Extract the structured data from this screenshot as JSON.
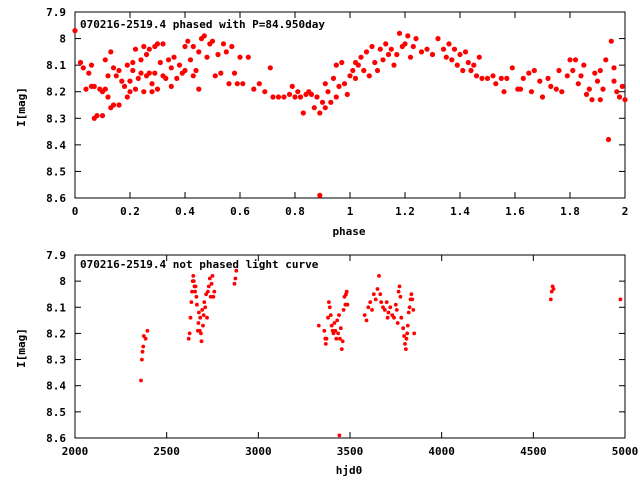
{
  "colors": {
    "points": "#ff0000",
    "frame": "#000000"
  },
  "chart_data": [
    {
      "type": "scatter",
      "title": "070216-2519.4 phased with P=84.950day",
      "xlabel": "phase",
      "ylabel": "I[mag]",
      "xlim": [
        0,
        2
      ],
      "ylim": [
        8.6,
        7.9
      ],
      "y_inverted": true,
      "grid": false,
      "xticks": [
        "0",
        "0.2",
        "0.4",
        "0.6",
        "0.8",
        "1",
        "1.2",
        "1.4",
        "1.6",
        "1.8",
        "2"
      ],
      "xtick_values": [
        0,
        0.2,
        0.4,
        0.6,
        0.8,
        1,
        1.2,
        1.4,
        1.6,
        1.8,
        2
      ],
      "yticks": [
        "7.9",
        "8",
        "8.1",
        "8.2",
        "8.3",
        "8.4",
        "8.5",
        "8.6"
      ],
      "ytick_values": [
        7.9,
        8,
        8.1,
        8.2,
        8.3,
        8.4,
        8.5,
        8.6
      ],
      "points": [
        [
          0.0,
          7.97
        ],
        [
          0.02,
          8.09
        ],
        [
          0.03,
          8.11
        ],
        [
          0.04,
          8.19
        ],
        [
          0.05,
          8.13
        ],
        [
          0.06,
          8.1
        ],
        [
          0.06,
          8.18
        ],
        [
          0.07,
          8.3
        ],
        [
          0.07,
          8.18
        ],
        [
          0.08,
          8.29
        ],
        [
          0.09,
          8.19
        ],
        [
          0.1,
          8.29
        ],
        [
          0.1,
          8.2
        ],
        [
          0.11,
          8.19
        ],
        [
          0.11,
          8.08
        ],
        [
          0.12,
          8.14
        ],
        [
          0.12,
          8.22
        ],
        [
          0.13,
          8.05
        ],
        [
          0.13,
          8.26
        ],
        [
          0.14,
          8.11
        ],
        [
          0.14,
          8.25
        ],
        [
          0.15,
          8.14
        ],
        [
          0.16,
          8.12
        ],
        [
          0.16,
          8.25
        ],
        [
          0.17,
          8.16
        ],
        [
          0.18,
          8.18
        ],
        [
          0.19,
          8.22
        ],
        [
          0.19,
          8.1
        ],
        [
          0.2,
          8.16
        ],
        [
          0.2,
          8.2
        ],
        [
          0.21,
          8.09
        ],
        [
          0.21,
          8.12
        ],
        [
          0.22,
          8.04
        ],
        [
          0.22,
          8.19
        ],
        [
          0.23,
          8.15
        ],
        [
          0.24,
          8.08
        ],
        [
          0.24,
          8.13
        ],
        [
          0.25,
          8.03
        ],
        [
          0.25,
          8.2
        ],
        [
          0.26,
          8.06
        ],
        [
          0.26,
          8.14
        ],
        [
          0.27,
          8.13
        ],
        [
          0.27,
          8.04
        ],
        [
          0.28,
          8.17
        ],
        [
          0.28,
          8.2
        ],
        [
          0.29,
          8.03
        ],
        [
          0.29,
          8.13
        ],
        [
          0.3,
          8.02
        ],
        [
          0.3,
          8.19
        ],
        [
          0.31,
          8.09
        ],
        [
          0.32,
          8.14
        ],
        [
          0.32,
          8.02
        ],
        [
          0.33,
          8.15
        ],
        [
          0.34,
          8.08
        ],
        [
          0.35,
          8.11
        ],
        [
          0.35,
          8.18
        ],
        [
          0.36,
          8.07
        ],
        [
          0.37,
          8.15
        ],
        [
          0.38,
          8.1
        ],
        [
          0.39,
          8.13
        ],
        [
          0.4,
          8.03
        ],
        [
          0.4,
          8.12
        ],
        [
          0.41,
          8.01
        ],
        [
          0.42,
          8.08
        ],
        [
          0.43,
          8.03
        ],
        [
          0.43,
          8.14
        ],
        [
          0.44,
          8.12
        ],
        [
          0.45,
          8.05
        ],
        [
          0.45,
          8.19
        ],
        [
          0.46,
          8.0
        ],
        [
          0.47,
          7.99
        ],
        [
          0.48,
          8.07
        ],
        [
          0.49,
          8.02
        ],
        [
          0.5,
          8.01
        ],
        [
          0.51,
          8.14
        ],
        [
          0.52,
          8.06
        ],
        [
          0.53,
          8.13
        ],
        [
          0.54,
          8.02
        ],
        [
          0.55,
          8.05
        ],
        [
          0.56,
          8.17
        ],
        [
          0.57,
          8.03
        ],
        [
          0.58,
          8.13
        ],
        [
          0.59,
          8.17
        ],
        [
          0.6,
          8.07
        ],
        [
          0.61,
          8.17
        ],
        [
          0.63,
          8.07
        ],
        [
          0.65,
          8.19
        ],
        [
          0.67,
          8.17
        ],
        [
          0.69,
          8.2
        ],
        [
          0.71,
          8.11
        ],
        [
          0.72,
          8.22
        ],
        [
          0.74,
          8.22
        ],
        [
          0.76,
          8.22
        ],
        [
          0.78,
          8.21
        ],
        [
          0.79,
          8.18
        ],
        [
          0.8,
          8.22
        ],
        [
          0.81,
          8.2
        ],
        [
          0.82,
          8.22
        ],
        [
          0.83,
          8.28
        ],
        [
          0.84,
          8.21
        ],
        [
          0.85,
          8.2
        ],
        [
          0.86,
          8.21
        ],
        [
          0.87,
          8.26
        ],
        [
          0.88,
          8.22
        ],
        [
          0.89,
          8.59
        ],
        [
          0.89,
          8.28
        ],
        [
          0.9,
          8.24
        ],
        [
          0.91,
          8.17
        ],
        [
          0.91,
          8.26
        ],
        [
          0.92,
          8.2
        ],
        [
          0.93,
          8.24
        ],
        [
          0.94,
          8.15
        ],
        [
          0.95,
          8.22
        ],
        [
          0.95,
          8.1
        ],
        [
          0.96,
          8.18
        ],
        [
          0.97,
          8.09
        ],
        [
          0.98,
          8.17
        ],
        [
          0.99,
          8.21
        ],
        [
          1.0,
          8.14
        ],
        [
          1.01,
          8.12
        ],
        [
          1.02,
          8.09
        ],
        [
          1.02,
          8.15
        ],
        [
          1.03,
          8.1
        ],
        [
          1.04,
          8.07
        ],
        [
          1.05,
          8.12
        ],
        [
          1.06,
          8.05
        ],
        [
          1.07,
          8.14
        ],
        [
          1.08,
          8.03
        ],
        [
          1.09,
          8.09
        ],
        [
          1.1,
          8.12
        ],
        [
          1.11,
          8.04
        ],
        [
          1.12,
          8.08
        ],
        [
          1.13,
          8.02
        ],
        [
          1.14,
          8.06
        ],
        [
          1.15,
          8.04
        ],
        [
          1.16,
          8.1
        ],
        [
          1.17,
          8.06
        ],
        [
          1.18,
          7.98
        ],
        [
          1.19,
          8.03
        ],
        [
          1.2,
          8.02
        ],
        [
          1.21,
          7.99
        ],
        [
          1.22,
          8.07
        ],
        [
          1.23,
          8.03
        ],
        [
          1.24,
          8.0
        ],
        [
          1.26,
          8.05
        ],
        [
          1.28,
          8.04
        ],
        [
          1.3,
          8.06
        ],
        [
          1.32,
          8.0
        ],
        [
          1.34,
          8.04
        ],
        [
          1.35,
          8.07
        ],
        [
          1.36,
          8.02
        ],
        [
          1.37,
          8.08
        ],
        [
          1.38,
          8.04
        ],
        [
          1.39,
          8.1
        ],
        [
          1.4,
          8.06
        ],
        [
          1.41,
          8.12
        ],
        [
          1.42,
          8.05
        ],
        [
          1.43,
          8.09
        ],
        [
          1.44,
          8.12
        ],
        [
          1.45,
          8.1
        ],
        [
          1.46,
          8.14
        ],
        [
          1.47,
          8.07
        ],
        [
          1.48,
          8.15
        ],
        [
          1.5,
          8.15
        ],
        [
          1.52,
          8.14
        ],
        [
          1.53,
          8.17
        ],
        [
          1.55,
          8.15
        ],
        [
          1.56,
          8.2
        ],
        [
          1.57,
          8.15
        ],
        [
          1.59,
          8.11
        ],
        [
          1.61,
          8.19
        ],
        [
          1.62,
          8.19
        ],
        [
          1.63,
          8.15
        ],
        [
          1.65,
          8.13
        ],
        [
          1.66,
          8.2
        ],
        [
          1.67,
          8.12
        ],
        [
          1.69,
          8.16
        ],
        [
          1.7,
          8.22
        ],
        [
          1.72,
          8.15
        ],
        [
          1.73,
          8.18
        ],
        [
          1.75,
          8.19
        ],
        [
          1.76,
          8.12
        ],
        [
          1.77,
          8.2
        ],
        [
          1.79,
          8.14
        ],
        [
          1.8,
          8.08
        ],
        [
          1.81,
          8.12
        ],
        [
          1.82,
          8.08
        ],
        [
          1.83,
          8.17
        ],
        [
          1.84,
          8.14
        ],
        [
          1.85,
          8.1
        ],
        [
          1.86,
          8.21
        ],
        [
          1.87,
          8.19
        ],
        [
          1.88,
          8.23
        ],
        [
          1.89,
          8.13
        ],
        [
          1.9,
          8.16
        ],
        [
          1.91,
          8.23
        ],
        [
          1.91,
          8.12
        ],
        [
          1.92,
          8.19
        ],
        [
          1.93,
          8.08
        ],
        [
          1.94,
          8.38
        ],
        [
          1.95,
          8.01
        ],
        [
          1.96,
          8.16
        ],
        [
          1.96,
          8.11
        ],
        [
          1.97,
          8.2
        ],
        [
          1.98,
          8.22
        ],
        [
          1.99,
          8.18
        ],
        [
          2.0,
          8.23
        ]
      ]
    },
    {
      "type": "scatter",
      "title": "070216-2519.4 not phased light curve",
      "xlabel": "hjd0",
      "ylabel": "I[mag]",
      "xlim": [
        2000,
        5000
      ],
      "ylim": [
        8.6,
        7.9
      ],
      "y_inverted": true,
      "grid": false,
      "xticks": [
        "2000",
        "2500",
        "3000",
        "3500",
        "4000",
        "4500",
        "5000"
      ],
      "xtick_values": [
        2000,
        2500,
        3000,
        3500,
        4000,
        4500,
        5000
      ],
      "yticks": [
        "7.9",
        "8",
        "8.1",
        "8.2",
        "8.3",
        "8.4",
        "8.5",
        "8.6"
      ],
      "ytick_values": [
        7.9,
        8,
        8.1,
        8.2,
        8.3,
        8.4,
        8.5,
        8.6
      ],
      "points": [
        [
          2360,
          8.38
        ],
        [
          2365,
          8.3
        ],
        [
          2368,
          8.27
        ],
        [
          2372,
          8.25
        ],
        [
          2375,
          8.21
        ],
        [
          2385,
          8.22
        ],
        [
          2395,
          8.19
        ],
        [
          2620,
          8.22
        ],
        [
          2625,
          8.2
        ],
        [
          2630,
          8.14
        ],
        [
          2635,
          8.08
        ],
        [
          2638,
          8.04
        ],
        [
          2642,
          8.0
        ],
        [
          2645,
          7.98
        ],
        [
          2648,
          8.0
        ],
        [
          2652,
          8.02
        ],
        [
          2655,
          8.04
        ],
        [
          2658,
          8.02
        ],
        [
          2662,
          8.06
        ],
        [
          2665,
          8.09
        ],
        [
          2670,
          8.19
        ],
        [
          2673,
          8.16
        ],
        [
          2676,
          8.12
        ],
        [
          2680,
          8.19
        ],
        [
          2683,
          8.14
        ],
        [
          2687,
          8.2
        ],
        [
          2690,
          8.23
        ],
        [
          2694,
          8.11
        ],
        [
          2698,
          8.17
        ],
        [
          2702,
          8.13
        ],
        [
          2705,
          8.08
        ],
        [
          2710,
          8.1
        ],
        [
          2715,
          8.05
        ],
        [
          2720,
          8.14
        ],
        [
          2725,
          8.04
        ],
        [
          2730,
          8.02
        ],
        [
          2735,
          7.99
        ],
        [
          2740,
          8.06
        ],
        [
          2745,
          8.01
        ],
        [
          2750,
          7.98
        ],
        [
          2755,
          8.06
        ],
        [
          2760,
          8.04
        ],
        [
          2870,
          8.01
        ],
        [
          2875,
          7.99
        ],
        [
          2880,
          7.96
        ],
        [
          3330,
          8.17
        ],
        [
          3360,
          8.19
        ],
        [
          3365,
          8.22
        ],
        [
          3368,
          8.24
        ],
        [
          3372,
          8.22
        ],
        [
          3380,
          8.14
        ],
        [
          3385,
          8.08
        ],
        [
          3390,
          8.1
        ],
        [
          3395,
          8.13
        ],
        [
          3400,
          8.17
        ],
        [
          3405,
          8.19
        ],
        [
          3410,
          8.2
        ],
        [
          3415,
          8.16
        ],
        [
          3420,
          8.19
        ],
        [
          3425,
          8.22
        ],
        [
          3430,
          8.15
        ],
        [
          3435,
          8.2
        ],
        [
          3440,
          8.13
        ],
        [
          3445,
          8.22
        ],
        [
          3450,
          8.18
        ],
        [
          3455,
          8.26
        ],
        [
          3460,
          8.23
        ],
        [
          3465,
          8.11
        ],
        [
          3470,
          8.06
        ],
        [
          3475,
          8.09
        ],
        [
          3478,
          8.05
        ],
        [
          3482,
          8.04
        ],
        [
          3486,
          8.09
        ],
        [
          3442,
          8.59
        ],
        [
          3580,
          8.13
        ],
        [
          3590,
          8.15
        ],
        [
          3600,
          8.1
        ],
        [
          3610,
          8.08
        ],
        [
          3620,
          8.11
        ],
        [
          3630,
          8.05
        ],
        [
          3640,
          8.07
        ],
        [
          3650,
          8.03
        ],
        [
          3658,
          7.98
        ],
        [
          3665,
          8.05
        ],
        [
          3670,
          8.08
        ],
        [
          3680,
          8.1
        ],
        [
          3690,
          8.11
        ],
        [
          3700,
          8.08
        ],
        [
          3705,
          8.14
        ],
        [
          3710,
          8.12
        ],
        [
          3720,
          8.1
        ],
        [
          3730,
          8.13
        ],
        [
          3740,
          8.14
        ],
        [
          3750,
          8.09
        ],
        [
          3755,
          8.11
        ],
        [
          3760,
          8.16
        ],
        [
          3765,
          8.04
        ],
        [
          3770,
          8.02
        ],
        [
          3775,
          8.06
        ],
        [
          3780,
          8.14
        ],
        [
          3790,
          8.18
        ],
        [
          3795,
          8.21
        ],
        [
          3800,
          8.24
        ],
        [
          3805,
          8.26
        ],
        [
          3808,
          8.22
        ],
        [
          3812,
          8.2
        ],
        [
          3815,
          8.17
        ],
        [
          3820,
          8.12
        ],
        [
          3825,
          8.1
        ],
        [
          3830,
          8.07
        ],
        [
          3835,
          8.05
        ],
        [
          3840,
          8.07
        ],
        [
          3845,
          8.11
        ],
        [
          3850,
          8.2
        ],
        [
          4595,
          8.07
        ],
        [
          4600,
          8.04
        ],
        [
          4605,
          8.02
        ],
        [
          4610,
          8.03
        ],
        [
          4975,
          8.07
        ]
      ]
    }
  ]
}
